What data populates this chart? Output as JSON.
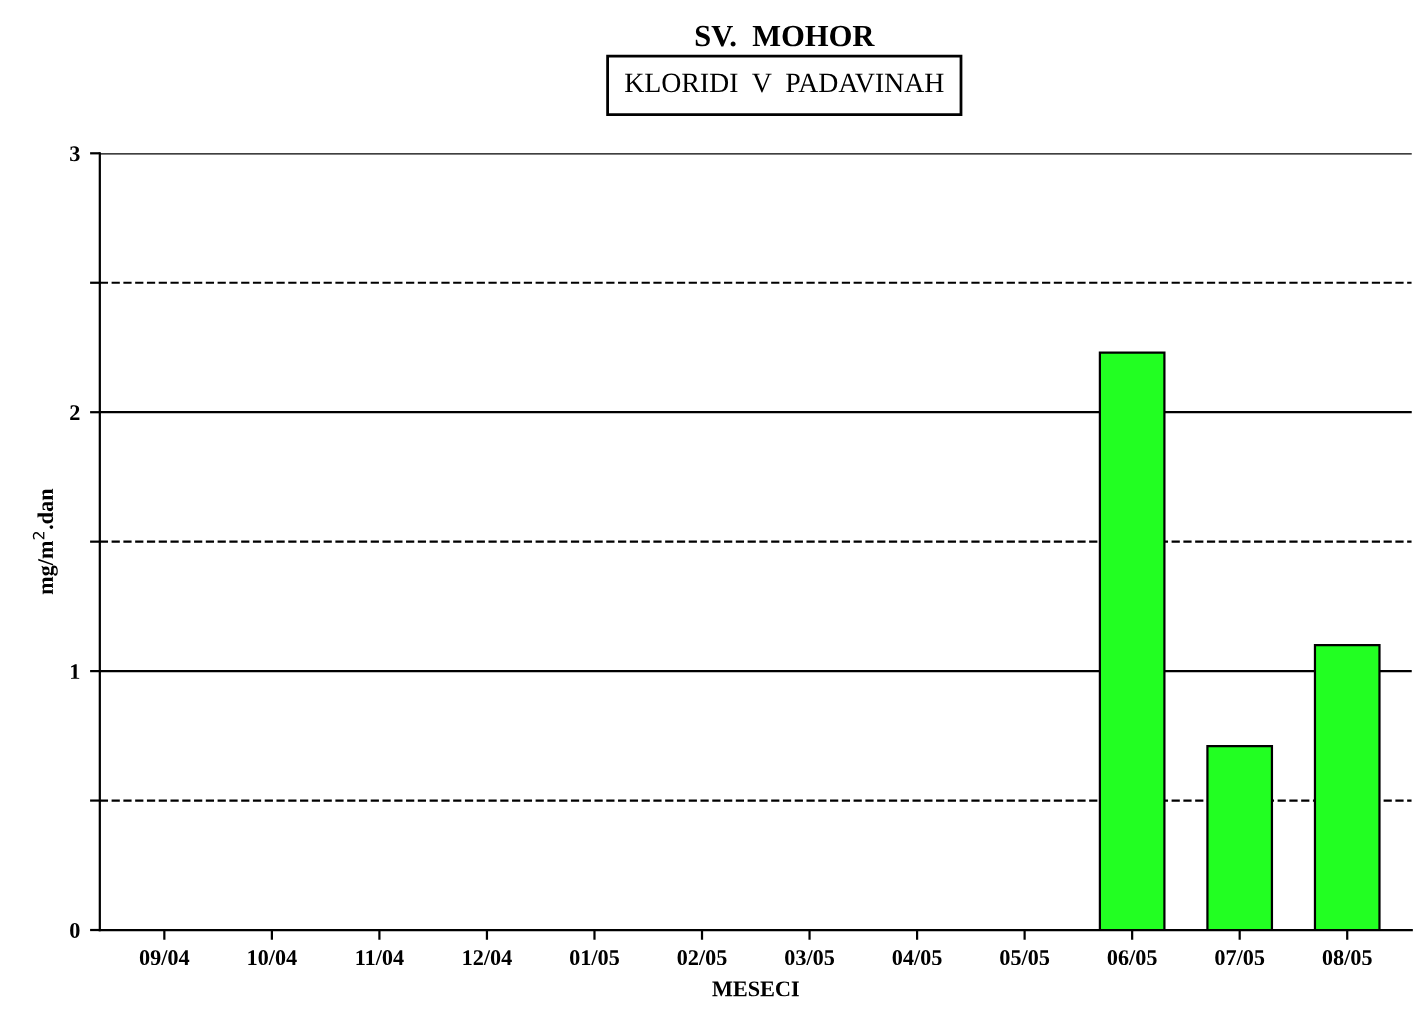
{
  "chart_data": {
    "type": "bar",
    "title": "SV.  MOHOR",
    "subtitle": "KLORIDI  V  PADAVINAH",
    "xlabel": "MESECI",
    "ylabel": "mg/m$^{2}$.dan",
    "categories": [
      "09/04",
      "10/04",
      "11/04",
      "12/04",
      "01/05",
      "02/05",
      "03/05",
      "04/05",
      "05/05",
      "06/05",
      "07/05",
      "08/05"
    ],
    "values": [
      null,
      null,
      null,
      null,
      null,
      null,
      null,
      null,
      null,
      2.23,
      0.71,
      1.1
    ],
    "color": "#22ff22",
    "ylim": [
      0,
      3
    ],
    "yticks": [
      0,
      {
        "value": 0.5,
        "label": null
      },
      1,
      {
        "value": 1.5,
        "label": null
      },
      2,
      {
        "value": 2.5,
        "label": null
      },
      3
    ],
    "grid": "y",
    "legend": false
  }
}
